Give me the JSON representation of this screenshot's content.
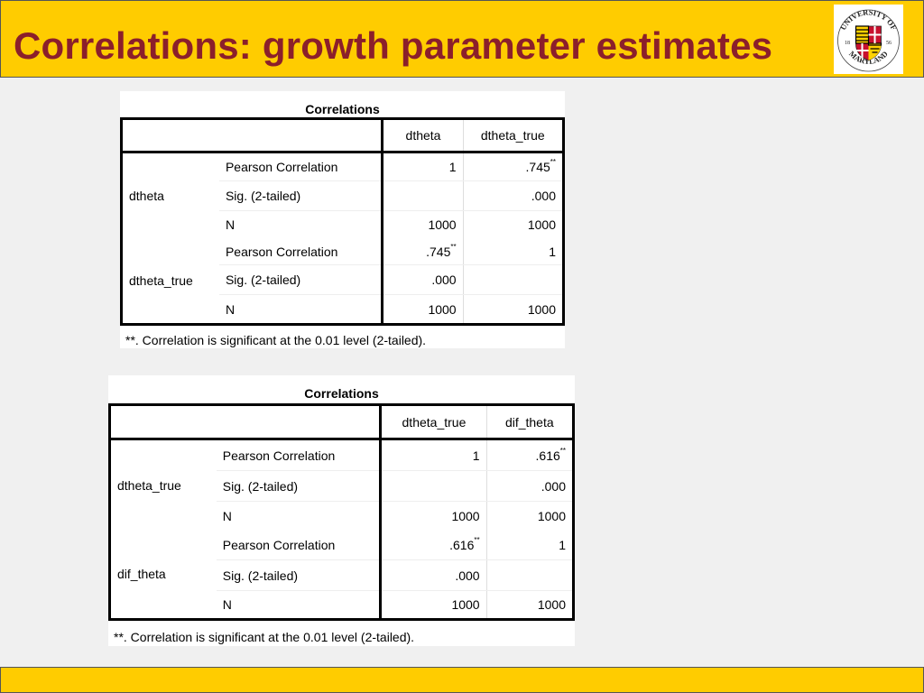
{
  "header": {
    "title": "Correlations: growth parameter estimates",
    "logo_text": "UNIVERSITY OF MARYLAND",
    "logo_years": [
      "18",
      "56"
    ]
  },
  "colors": {
    "banner": "#ffcc00",
    "title": "#8b1f2b"
  },
  "tables": [
    {
      "caption": "Correlations",
      "columns": [
        "dtheta",
        "dtheta_true"
      ],
      "groups": [
        {
          "variable": "dtheta",
          "rows": [
            {
              "stat": "Pearson Correlation",
              "values": [
                "1",
                ".745"
              ],
              "flags": [
                "",
                "**"
              ]
            },
            {
              "stat": "Sig. (2-tailed)",
              "values": [
                "",
                ".000"
              ],
              "flags": [
                "",
                ""
              ]
            },
            {
              "stat": "N",
              "values": [
                "1000",
                "1000"
              ],
              "flags": [
                "",
                ""
              ]
            }
          ]
        },
        {
          "variable": "dtheta_true",
          "rows": [
            {
              "stat": "Pearson Correlation",
              "values": [
                ".745",
                "1"
              ],
              "flags": [
                "**",
                ""
              ]
            },
            {
              "stat": "Sig. (2-tailed)",
              "values": [
                ".000",
                ""
              ],
              "flags": [
                "",
                ""
              ]
            },
            {
              "stat": "N",
              "values": [
                "1000",
                "1000"
              ],
              "flags": [
                "",
                ""
              ]
            }
          ]
        }
      ],
      "footnote": "**. Correlation is significant at the 0.01 level (2-tailed)."
    },
    {
      "caption": "Correlations",
      "columns": [
        "dtheta_true",
        "dif_theta"
      ],
      "groups": [
        {
          "variable": "dtheta_true",
          "rows": [
            {
              "stat": "Pearson Correlation",
              "values": [
                "1",
                ".616"
              ],
              "flags": [
                "",
                "**"
              ]
            },
            {
              "stat": "Sig. (2-tailed)",
              "values": [
                "",
                ".000"
              ],
              "flags": [
                "",
                ""
              ]
            },
            {
              "stat": "N",
              "values": [
                "1000",
                "1000"
              ],
              "flags": [
                "",
                ""
              ]
            }
          ]
        },
        {
          "variable": "dif_theta",
          "rows": [
            {
              "stat": "Pearson Correlation",
              "values": [
                ".616",
                "1"
              ],
              "flags": [
                "**",
                ""
              ]
            },
            {
              "stat": "Sig. (2-tailed)",
              "values": [
                ".000",
                ""
              ],
              "flags": [
                "",
                ""
              ]
            },
            {
              "stat": "N",
              "values": [
                "1000",
                "1000"
              ],
              "flags": [
                "",
                ""
              ]
            }
          ]
        }
      ],
      "footnote": "**. Correlation is significant at the 0.01 level (2-tailed)."
    }
  ]
}
